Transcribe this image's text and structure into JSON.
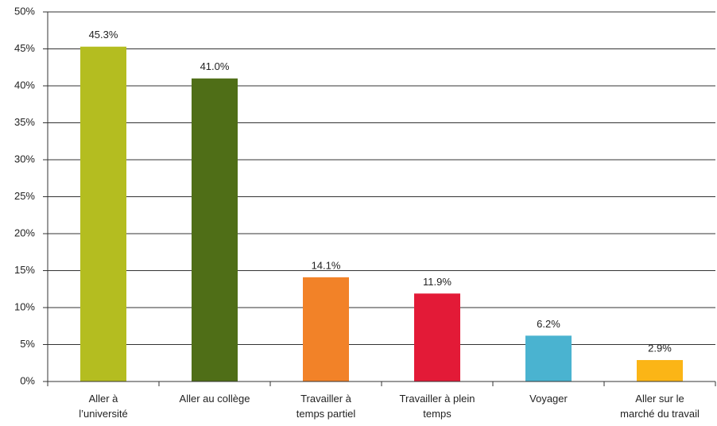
{
  "chart_data": {
    "type": "bar",
    "categories": [
      "Aller à\nl’université",
      "Aller au collège",
      "Travailler à\ntemps partiel",
      "Travailler à plein\ntemps",
      "Voyager",
      "Aller sur le\nmarché du travail"
    ],
    "values": [
      45.3,
      41.0,
      14.1,
      11.9,
      6.2,
      2.9
    ],
    "value_labels": [
      "45.3%",
      "41.0%",
      "14.1%",
      "11.9%",
      "6.2%",
      "2.9%"
    ],
    "colors": [
      "#b4bd20",
      "#4f6e17",
      "#f28228",
      "#e31a37",
      "#4ab3d0",
      "#fbb516"
    ],
    "ylim": [
      0,
      50
    ],
    "yticks": [
      {
        "value": 0,
        "label": "0%"
      },
      {
        "value": 5,
        "label": "5%"
      },
      {
        "value": 10,
        "label": "10%"
      },
      {
        "value": 15,
        "label": "15%"
      },
      {
        "value": 20,
        "label": "20%"
      },
      {
        "value": 25,
        "label": "25%"
      },
      {
        "value": 30,
        "label": "30%"
      },
      {
        "value": 35,
        "label": "35%"
      },
      {
        "value": 40,
        "label": "40%"
      },
      {
        "value": 45,
        "label": "45%"
      },
      {
        "value": 50,
        "label": "50%"
      }
    ],
    "grid": true
  }
}
